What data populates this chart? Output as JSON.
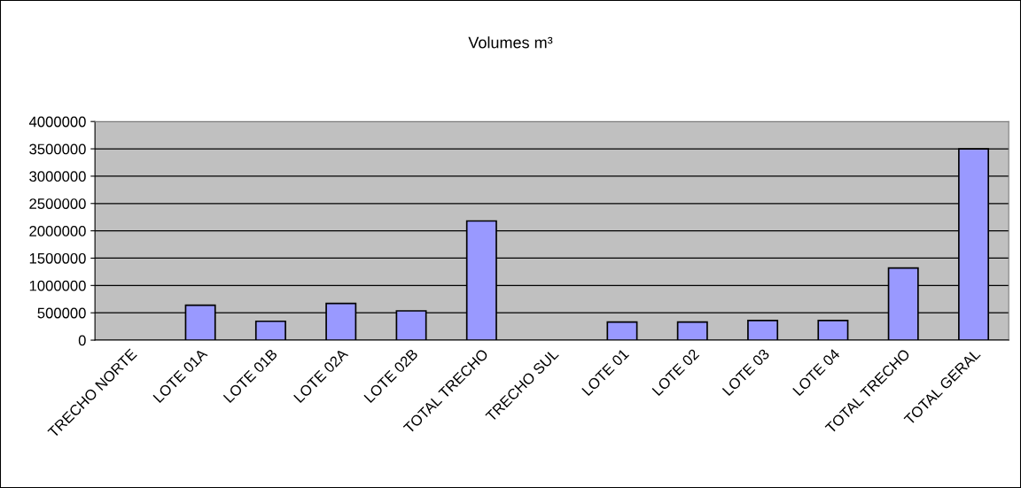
{
  "chart_data": {
    "type": "bar",
    "title": "Volumes m³",
    "categories": [
      "TRECHO NORTE",
      "LOTE 01A",
      "LOTE 01B",
      "LOTE 02A",
      "LOTE 02B",
      "TOTAL TRECHO",
      "TRECHO SUL",
      "LOTE 01",
      "LOTE 02",
      "LOTE 03",
      "LOTE 04",
      "TOTAL TRECHO",
      "TOTAL GERAL"
    ],
    "values": [
      null,
      640000,
      345000,
      670000,
      535000,
      2180000,
      null,
      330000,
      330000,
      360000,
      360000,
      1320000,
      3500000
    ],
    "color": "#9999ff",
    "ylim": [
      0,
      4000000
    ],
    "yticks": [
      0,
      500000,
      1000000,
      1500000,
      2000000,
      2500000,
      3000000,
      3500000,
      4000000
    ],
    "grid": "y",
    "legend": false
  }
}
